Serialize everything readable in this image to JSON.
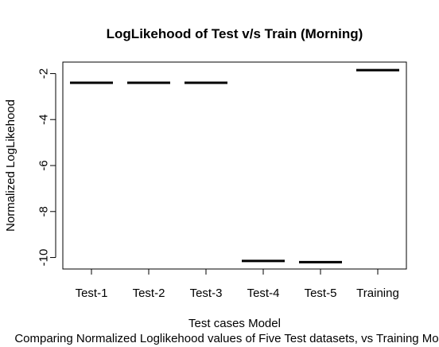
{
  "chart_data": {
    "type": "bar",
    "title": "LogLikehood of Test v/s Train (Morning)",
    "xlabel": "Test cases Model",
    "ylabel": "Normalized LogLikehood",
    "subtitle": "Comparing Normalized Loglikehood values of Five Test datasets, vs Training Model",
    "categories": [
      "Test-1",
      "Test-2",
      "Test-3",
      "Test-4",
      "Test-5",
      "Training"
    ],
    "values": [
      -2.4,
      -2.4,
      -2.4,
      -10.15,
      -10.2,
      -1.85
    ],
    "ylim": [
      -10.5,
      -1.5
    ],
    "yticks": [
      -2,
      -4,
      -6,
      -8,
      -10
    ],
    "grid": false
  }
}
